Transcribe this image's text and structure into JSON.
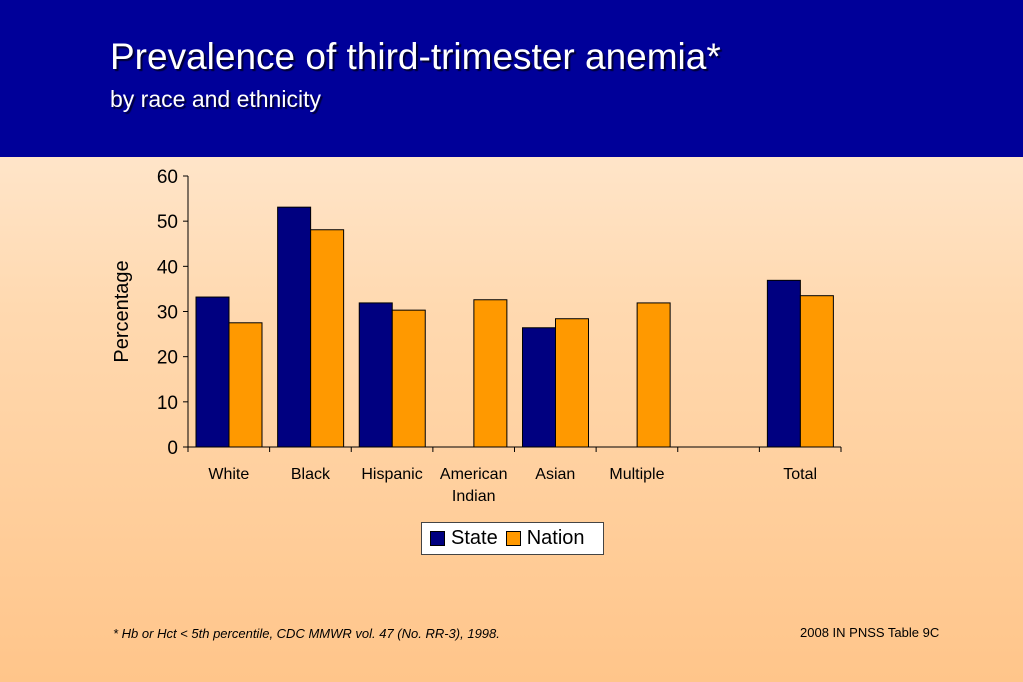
{
  "slide": {
    "title": "Prevalence of third-trimester anemia*",
    "subtitle": "by race and ethnicity",
    "footnote": "*  Hb or Hct < 5th percentile, CDC MMWR vol. 47 (No. RR-3), 1998.",
    "source": "2008 IN PNSS Table 9C"
  },
  "colors": {
    "header": "#000099",
    "state": "#000080",
    "nation": "#FF9900"
  },
  "chart_data": {
    "type": "bar",
    "categories": [
      [
        "White"
      ],
      [
        "Black"
      ],
      [
        "Hispanic"
      ],
      [
        "American",
        "Indian"
      ],
      [
        "Asian"
      ],
      [
        "Multiple"
      ],
      [
        ""
      ],
      [
        "Total"
      ]
    ],
    "series": [
      {
        "name": "State",
        "values": [
          33.2,
          53.1,
          31.9,
          null,
          26.4,
          null,
          null,
          36.9
        ]
      },
      {
        "name": "Nation",
        "values": [
          27.5,
          48.1,
          30.3,
          32.6,
          28.4,
          31.9,
          null,
          33.5
        ]
      }
    ],
    "ylabel": "Percentage",
    "ylim": [
      0,
      60
    ],
    "yticks": [
      0,
      10,
      20,
      30,
      40,
      50,
      60
    ],
    "grid": false,
    "legend": "bottom"
  }
}
